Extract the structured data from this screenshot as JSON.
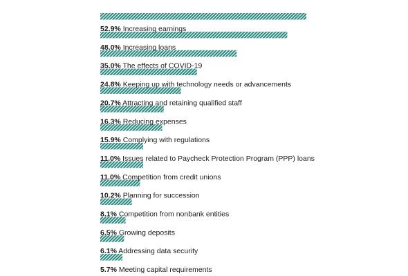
{
  "colors": {
    "bar_dark": "#2a8a80",
    "bar_light": "#ffffff",
    "text": "#1a1a1a"
  },
  "chart_data": {
    "type": "bar",
    "orientation": "horizontal",
    "title": "",
    "xlabel": "",
    "ylabel": "",
    "xlim": [
      0,
      52.9
    ],
    "grid": false,
    "value_format": "percent",
    "categories": [
      "Increasing earnings",
      "Increasing loans",
      "The effects of COVID-19",
      "Keeping up with technology needs or advancements",
      "Attracting and retaining qualified staff",
      "Reducing expenses",
      "Complying with regulations",
      "Issues related to Paycheck Protection Program (PPP) loans",
      "Competition from credit unions",
      "Planning for succession",
      "Competition from nonbank entities",
      "Growing deposits",
      "Addressing data security",
      "Meeting capital requirements"
    ],
    "values": [
      52.9,
      48.0,
      35.0,
      24.8,
      20.7,
      16.3,
      15.9,
      11.0,
      11.0,
      10.2,
      8.1,
      6.5,
      6.1,
      5.7
    ],
    "value_labels": [
      "52.9%",
      "48.0%",
      "35.0%",
      "24.8%",
      "20.7%",
      "16.3%",
      "15.9%",
      "11.0%",
      "11.0%",
      "10.2%",
      "8.1%",
      "6.5%",
      "6.1%",
      "5.7%"
    ]
  }
}
